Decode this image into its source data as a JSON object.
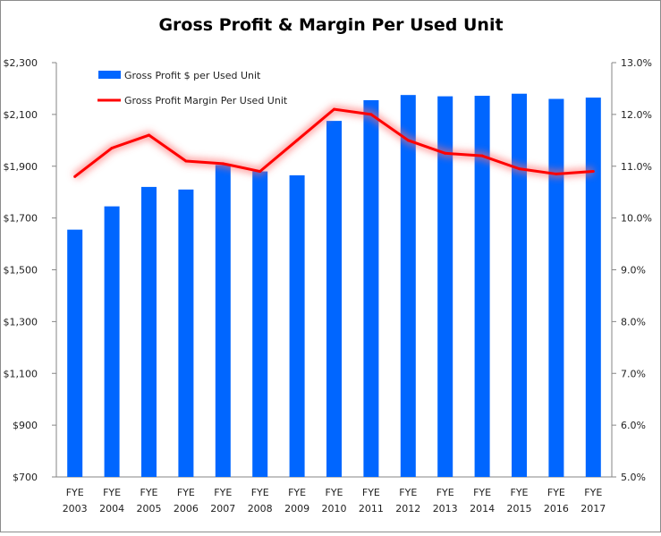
{
  "chart_data": {
    "type": "bar+line",
    "title": "Gross Profit & Margin Per Used Unit",
    "categories": [
      "FYE 2003",
      "FYE 2004",
      "FYE 2005",
      "FYE 2006",
      "FYE 2007",
      "FYE 2008",
      "FYE 2009",
      "FYE 2010",
      "FYE 2011",
      "FYE 2012",
      "FYE 2013",
      "FYE 2014",
      "FYE 2015",
      "FYE 2016",
      "FYE 2017"
    ],
    "series": [
      {
        "name": "Gross Profit $ per Used Unit",
        "type": "bar",
        "axis": "left",
        "color": "#0066ff",
        "values": [
          1655,
          1745,
          1820,
          1810,
          1905,
          1880,
          1865,
          2075,
          2155,
          2175,
          2170,
          2172,
          2180,
          2160,
          2165
        ]
      },
      {
        "name": "Gross Profit Margin Per Used Unit",
        "type": "line",
        "axis": "right",
        "color": "#ff0000",
        "values": [
          10.8,
          11.35,
          11.6,
          11.1,
          11.05,
          10.9,
          11.5,
          12.1,
          12.0,
          11.5,
          11.25,
          11.2,
          10.95,
          10.85,
          10.9
        ]
      }
    ],
    "y_left": {
      "range": [
        700,
        2300
      ],
      "ticks": [
        "$700",
        "$900",
        "$1,100",
        "$1,300",
        "$1,500",
        "$1,700",
        "$1,900",
        "$2,100",
        "$2,300"
      ]
    },
    "y_right": {
      "range": [
        5.0,
        13.0
      ],
      "ticks": [
        "5.0%",
        "6.0%",
        "7.0%",
        "8.0%",
        "9.0%",
        "10.0%",
        "11.0%",
        "12.0%",
        "13.0%"
      ]
    },
    "grid": false,
    "legend": "top-left"
  }
}
